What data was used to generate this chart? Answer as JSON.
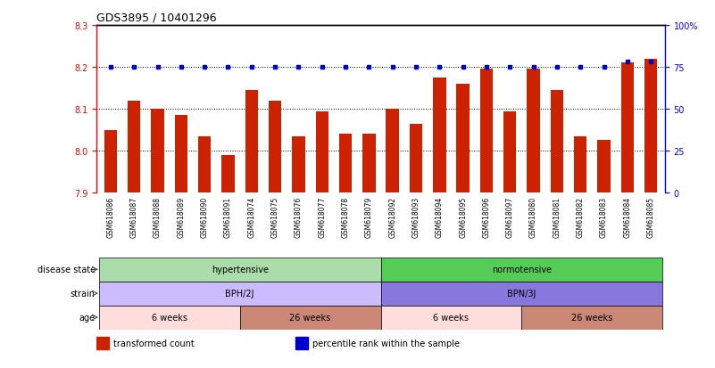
{
  "title": "GDS3895 / 10401296",
  "samples": [
    "GSM618086",
    "GSM618087",
    "GSM618088",
    "GSM618089",
    "GSM618090",
    "GSM618091",
    "GSM618074",
    "GSM618075",
    "GSM618076",
    "GSM618077",
    "GSM618078",
    "GSM618079",
    "GSM618092",
    "GSM618093",
    "GSM618094",
    "GSM618095",
    "GSM618096",
    "GSM618097",
    "GSM618080",
    "GSM618081",
    "GSM618082",
    "GSM618083",
    "GSM618084",
    "GSM618085"
  ],
  "bar_values": [
    8.05,
    8.12,
    8.1,
    8.085,
    8.035,
    7.99,
    8.145,
    8.12,
    8.035,
    8.095,
    8.04,
    8.04,
    8.1,
    8.065,
    8.175,
    8.16,
    8.195,
    8.095,
    8.195,
    8.145,
    8.035,
    8.025,
    8.21,
    8.22
  ],
  "percentile_values": [
    75,
    75,
    75,
    75,
    75,
    75,
    75,
    75,
    75,
    75,
    75,
    75,
    75,
    75,
    75,
    75,
    75,
    75,
    75,
    75,
    75,
    75,
    78,
    78
  ],
  "bar_color": "#cc2200",
  "dot_color": "#0000cc",
  "ylim_left": [
    7.9,
    8.3
  ],
  "ylim_right": [
    0,
    100
  ],
  "yticks_left": [
    7.9,
    8.0,
    8.1,
    8.2,
    8.3
  ],
  "yticks_right": [
    0,
    25,
    50,
    75,
    100
  ],
  "ytick_labels_right": [
    "0",
    "25",
    "50",
    "75",
    "100%"
  ],
  "grid_values": [
    8.0,
    8.1,
    8.2
  ],
  "bg_color": "#ffffff",
  "disease_state_groups": [
    {
      "label": "hypertensive",
      "start": 0,
      "end": 11,
      "color": "#aaddaa"
    },
    {
      "label": "normotensive",
      "start": 12,
      "end": 23,
      "color": "#55cc55"
    }
  ],
  "strain_groups": [
    {
      "label": "BPH/2J",
      "start": 0,
      "end": 11,
      "color": "#ccbbff"
    },
    {
      "label": "BPN/3J",
      "start": 12,
      "end": 23,
      "color": "#8877dd"
    }
  ],
  "age_groups": [
    {
      "label": "6 weeks",
      "start": 0,
      "end": 5,
      "color": "#ffdddd"
    },
    {
      "label": "26 weeks",
      "start": 6,
      "end": 11,
      "color": "#cc8877"
    },
    {
      "label": "6 weeks",
      "start": 12,
      "end": 17,
      "color": "#ffdddd"
    },
    {
      "label": "26 weeks",
      "start": 18,
      "end": 23,
      "color": "#cc8877"
    }
  ],
  "legend_items": [
    {
      "label": "transformed count",
      "color": "#cc2200"
    },
    {
      "label": "percentile rank within the sample",
      "color": "#0000cc"
    }
  ],
  "row_labels": [
    "disease state",
    "strain",
    "age"
  ],
  "arrow_color": "#888888"
}
